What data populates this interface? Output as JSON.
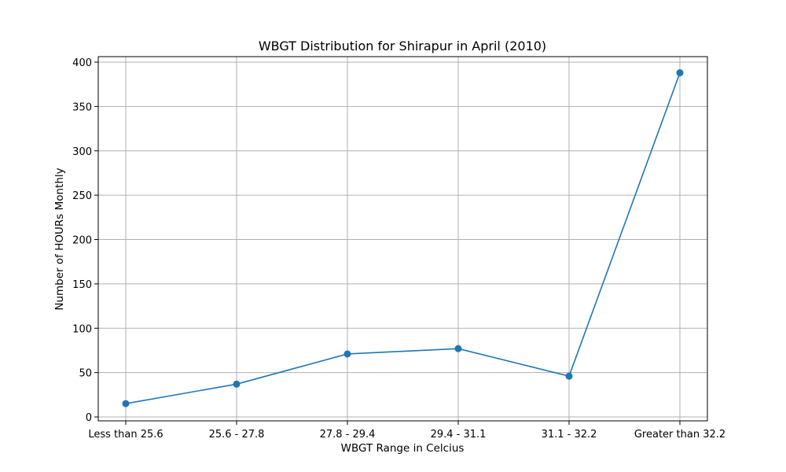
{
  "chart_data": {
    "type": "line",
    "title": "WBGT Distribution for Shirapur in April (2010)",
    "xlabel": "WBGT Range in Celcius",
    "ylabel": "Number of HOURs Monthly",
    "categories": [
      "Less than 25.6",
      "25.6 - 27.8",
      "27.8 - 29.4",
      "29.4 - 31.1",
      "31.1 - 32.2",
      "Greater than 32.2"
    ],
    "series": [
      {
        "values": [
          15,
          37,
          71,
          77,
          46,
          388
        ]
      }
    ],
    "ylim": [
      0,
      400
    ],
    "yticks": [
      "0",
      "50",
      "100",
      "150",
      "200",
      "250",
      "300",
      "350",
      "400"
    ],
    "grid": true,
    "markers": true,
    "line_color": "#1f77b4",
    "grid_color": "#b0b0b0"
  }
}
